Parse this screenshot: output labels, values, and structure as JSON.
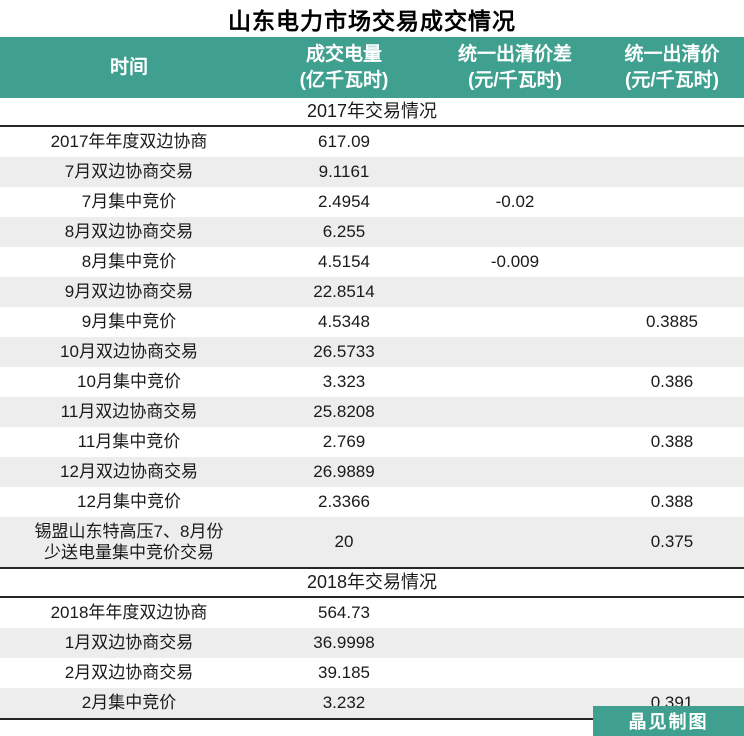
{
  "page_title": "山东电力市场交易成交情况",
  "colors": {
    "accent_teal": "#3fa08f",
    "stripe_gray": "#ededed",
    "rule_black": "#262626",
    "header_text": "#ffffff",
    "body_text": "#1a1a1a"
  },
  "chart_data": {
    "type": "table",
    "title": "山东电力市场交易成交情况",
    "columns": [
      {
        "label": "时间",
        "unit": ""
      },
      {
        "label": "成交电量",
        "unit": "(亿千瓦时)"
      },
      {
        "label": "统一出清价差",
        "unit": "(元/千瓦时)"
      },
      {
        "label": "统一出清价",
        "unit": "(元/千瓦时)"
      }
    ],
    "sections": [
      {
        "header": "2017年交易情况",
        "rows": [
          {
            "time": "2017年年度双边协商",
            "volume": "617.09",
            "diff": "",
            "price": ""
          },
          {
            "time": "7月双边协商交易",
            "volume": "9.1161",
            "diff": "",
            "price": ""
          },
          {
            "time": "7月集中竞价",
            "volume": "2.4954",
            "diff": "-0.02",
            "price": ""
          },
          {
            "time": "8月双边协商交易",
            "volume": "6.255",
            "diff": "",
            "price": ""
          },
          {
            "time": "8月集中竞价",
            "volume": "4.5154",
            "diff": "-0.009",
            "price": ""
          },
          {
            "time": "9月双边协商交易",
            "volume": "22.8514",
            "diff": "",
            "price": ""
          },
          {
            "time": "9月集中竞价",
            "volume": "4.5348",
            "diff": "",
            "price": "0.3885"
          },
          {
            "time": "10月双边协商交易",
            "volume": "26.5733",
            "diff": "",
            "price": ""
          },
          {
            "time": "10月集中竞价",
            "volume": "3.323",
            "diff": "",
            "price": "0.386"
          },
          {
            "time": "11月双边协商交易",
            "volume": "25.8208",
            "diff": "",
            "price": ""
          },
          {
            "time": "11月集中竞价",
            "volume": "2.769",
            "diff": "",
            "price": "0.388"
          },
          {
            "time": "12月双边协商交易",
            "volume": "26.9889",
            "diff": "",
            "price": ""
          },
          {
            "time": "12月集中竞价",
            "volume": "2.3366",
            "diff": "",
            "price": "0.388"
          },
          {
            "time": "锡盟山东特高压7、8月份\n少送电量集中竞价交易",
            "volume": "20",
            "diff": "",
            "price": "0.375"
          }
        ]
      },
      {
        "header": "2018年交易情况",
        "rows": [
          {
            "time": "2018年年度双边协商",
            "volume": "564.73",
            "diff": "",
            "price": ""
          },
          {
            "time": "1月双边协商交易",
            "volume": "36.9998",
            "diff": "",
            "price": ""
          },
          {
            "time": "2月双边协商交易",
            "volume": "39.185",
            "diff": "",
            "price": ""
          },
          {
            "time": "2月集中竞价",
            "volume": "3.232",
            "diff": "",
            "price": "0.391"
          }
        ]
      }
    ]
  },
  "footer": {
    "credit": "晶见制图"
  }
}
